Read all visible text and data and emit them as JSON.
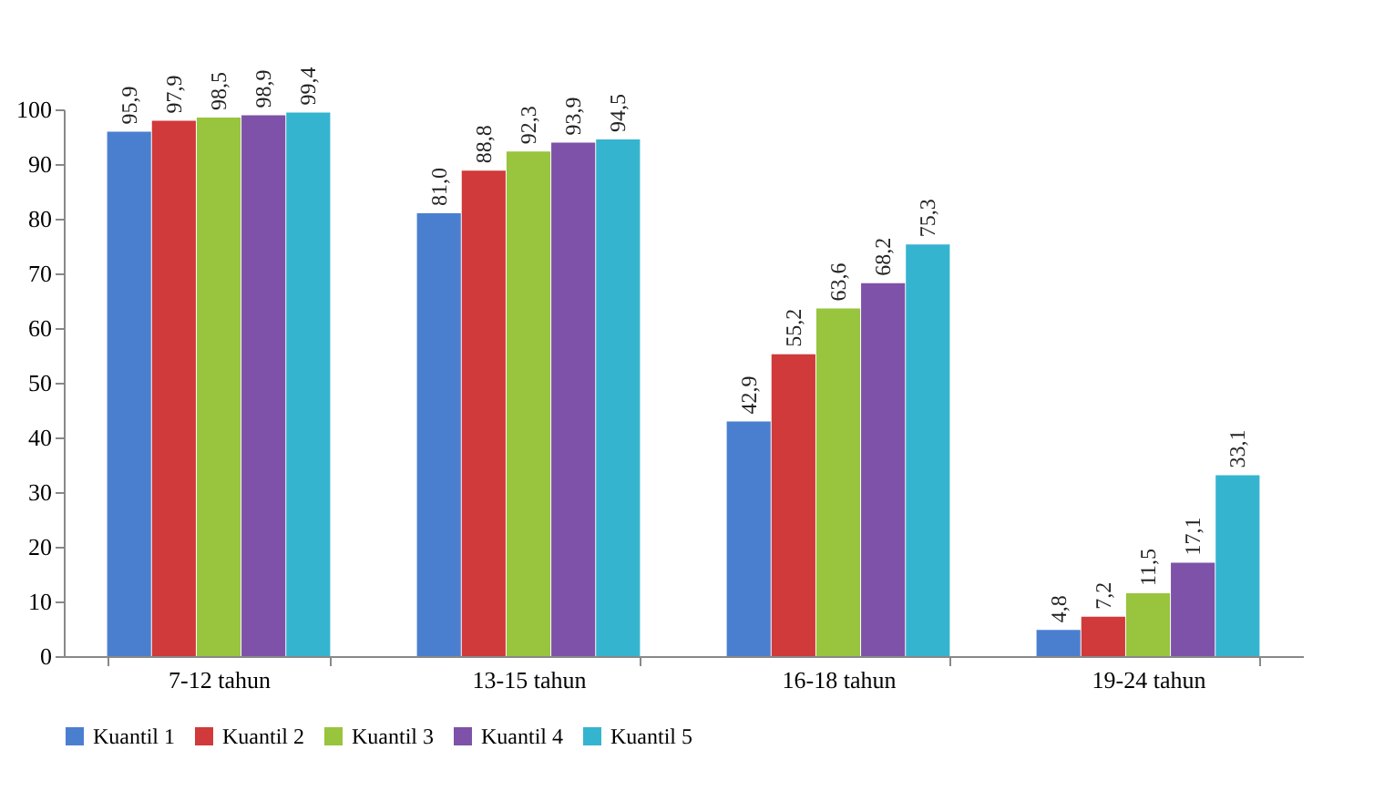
{
  "chart_data": {
    "type": "bar",
    "categories": [
      "7-12 tahun",
      "13-15 tahun",
      "16-18 tahun",
      "19-24 tahun"
    ],
    "series": [
      {
        "name": "Kuantil 1",
        "color": "#4a7fd0",
        "values": [
          95.9,
          81.0,
          42.9,
          4.8
        ],
        "value_labels": [
          "95,9",
          "81,0",
          "42,9",
          "4,8"
        ]
      },
      {
        "name": "Kuantil 2",
        "color": "#d03a3a",
        "values": [
          97.9,
          88.8,
          55.2,
          7.2
        ],
        "value_labels": [
          "97,9",
          "88,8",
          "55,2",
          "7,2"
        ]
      },
      {
        "name": "Kuantil 3",
        "color": "#98c43e",
        "values": [
          98.5,
          92.3,
          63.6,
          11.5
        ],
        "value_labels": [
          "98,5",
          "92,3",
          "63,6",
          "11,5"
        ]
      },
      {
        "name": "Kuantil 4",
        "color": "#7d52a8",
        "values": [
          98.9,
          93.9,
          68.2,
          17.1
        ],
        "value_labels": [
          "98,9",
          "93,9",
          "68,2",
          "17,1"
        ]
      },
      {
        "name": "Kuantil 5",
        "color": "#35b4cf",
        "values": [
          99.4,
          94.5,
          75.3,
          33.1
        ],
        "value_labels": [
          "99,4",
          "94,5",
          "75,3",
          "33,1"
        ]
      }
    ],
    "ylim": [
      0,
      100
    ],
    "yticks": [
      0,
      10,
      20,
      30,
      40,
      50,
      60,
      70,
      80,
      90,
      100
    ],
    "grid": false,
    "legend": "bottom"
  }
}
